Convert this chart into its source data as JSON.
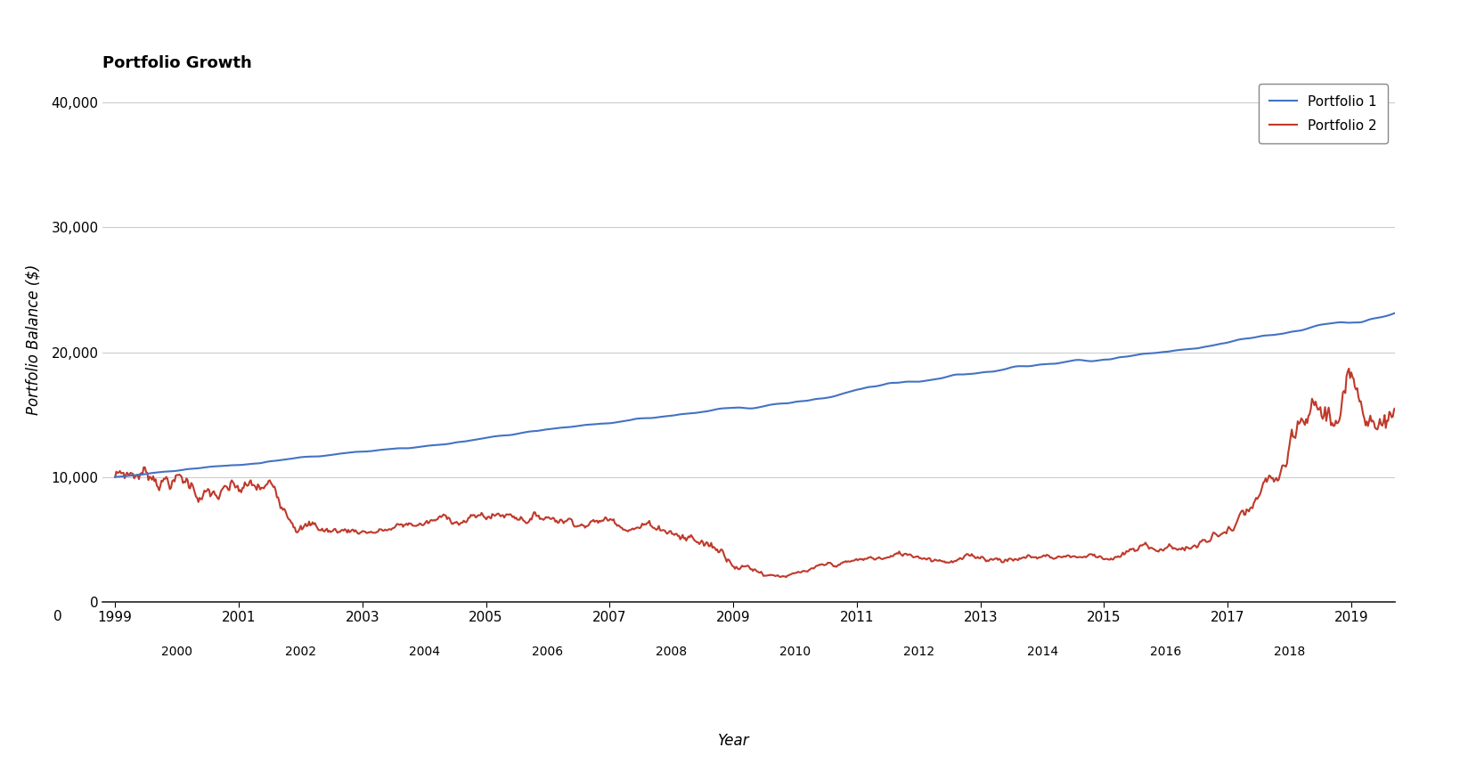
{
  "title": "Portfolio Growth",
  "xlabel": "Year",
  "ylabel": "Portfolio Balance ($)",
  "line1_label": "Portfolio 1",
  "line2_label": "Portfolio 2",
  "line1_color": "#4472C4",
  "line2_color": "#C0392B",
  "ylim": [
    0,
    42000
  ],
  "plot_ymin": 7000,
  "plot_ymax": 40000,
  "xlim_start": 1998.8,
  "xlim_end": 2019.7,
  "yticks": [
    0,
    10000,
    20000,
    30000,
    40000
  ],
  "odd_years": [
    1999,
    2001,
    2003,
    2005,
    2007,
    2009,
    2011,
    2013,
    2015,
    2017,
    2019
  ],
  "even_years": [
    2000,
    2002,
    2004,
    2006,
    2008,
    2010,
    2012,
    2014,
    2016,
    2018
  ],
  "title_fontsize": 13,
  "axis_label_fontsize": 12,
  "tick_fontsize": 11,
  "legend_fontsize": 11,
  "line_width": 1.5,
  "seed1": 10,
  "seed2": 7
}
